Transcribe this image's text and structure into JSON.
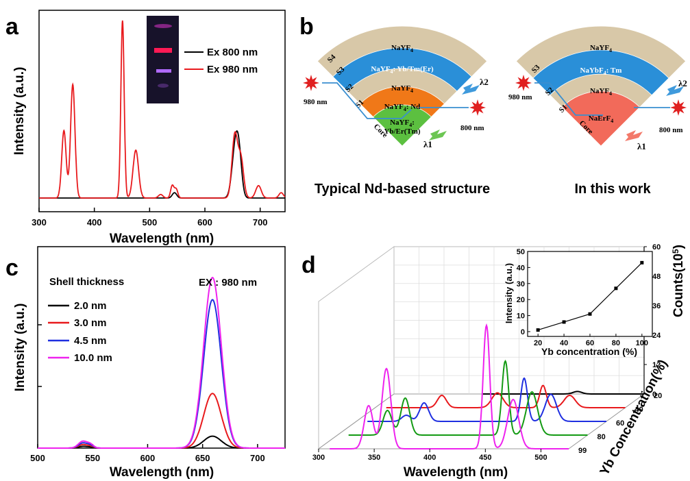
{
  "panels": {
    "a": "a",
    "b": "b",
    "c": "c",
    "d": "d"
  },
  "chart_data": [
    {
      "id": "a",
      "type": "line",
      "xlabel": "Wavelength (nm)",
      "ylabel": "Intensity (a.u.)",
      "xlim": [
        300,
        745
      ],
      "xticks": [
        300,
        400,
        500,
        600,
        700
      ],
      "ylim": [
        0,
        1
      ],
      "legend_position": "top-right",
      "inset_photo": true,
      "series": [
        {
          "name": "Ex 800 nm",
          "color": "#000000",
          "peaks": [
            [
              545,
              0.03,
              4
            ],
            [
              655,
              0.28,
              6
            ],
            [
              662,
              0.18,
              5
            ]
          ]
        },
        {
          "name": "Ex 980 nm",
          "color": "#e8191c",
          "peaks": [
            [
              345,
              0.38,
              4
            ],
            [
              361,
              0.64,
              4
            ],
            [
              451,
              1.0,
              3
            ],
            [
              475,
              0.27,
              5
            ],
            [
              541,
              0.07,
              3
            ],
            [
              548,
              0.05,
              3
            ],
            [
              520,
              0.02,
              4
            ],
            [
              654,
              0.35,
              5
            ],
            [
              665,
              0.22,
              5
            ],
            [
              697,
              0.07,
              5
            ],
            [
              738,
              0.03,
              4
            ]
          ]
        }
      ]
    },
    {
      "id": "c",
      "type": "line",
      "xlabel": "Wavelength (nm)",
      "ylabel": "Intensity (a.u.)",
      "xlim": [
        500,
        725
      ],
      "xticks": [
        500,
        550,
        600,
        650,
        700
      ],
      "ylim": [
        0,
        1
      ],
      "legend_title": "Shell thickness",
      "annotation": "EX : 980 nm",
      "series": [
        {
          "name": "2.0 nm",
          "color": "#000000",
          "peak": 0.07,
          "green": 0.01
        },
        {
          "name": "3.0 nm",
          "color": "#e8191c",
          "peak": 0.32,
          "green": 0.02
        },
        {
          "name": "4.5 nm",
          "color": "#1f2fe0",
          "peak": 0.87,
          "green": 0.03
        },
        {
          "name": "10.0 nm",
          "color": "#ee22ee",
          "peak": 1.0,
          "green": 0.04
        }
      ]
    },
    {
      "id": "d",
      "type": "line",
      "xlabel": "Wavelength (nm)",
      "zlabel": "Yb Concentration(%)",
      "xticks": [
        300,
        350,
        400,
        450,
        500
      ],
      "xlim": [
        300,
        525
      ],
      "zticks": [
        "20",
        "40",
        "60",
        "80",
        "99"
      ],
      "series": [
        {
          "name": "20",
          "color": "#000000"
        },
        {
          "name": "40",
          "color": "#e8191c"
        },
        {
          "name": "60",
          "color": "#1f2fe0"
        },
        {
          "name": "80",
          "color": "#139a13"
        },
        {
          "name": "99",
          "color": "#ee22ee"
        }
      ],
      "right_axis": {
        "label": "Counts(10",
        "label_sup": "5",
        "label_end": ")",
        "ticks": [
          0,
          12,
          24,
          36,
          48,
          60
        ]
      }
    },
    {
      "id": "d-inset",
      "type": "line",
      "xlabel": "Yb concentration (%)",
      "ylabel": "Intensity (a.u.)",
      "x": [
        20,
        40,
        60,
        80,
        100
      ],
      "y": [
        1,
        6,
        11,
        27,
        43
      ],
      "xticks": [
        20,
        40,
        60,
        80,
        100
      ],
      "yticks": [
        0,
        10,
        20,
        30,
        40,
        50
      ],
      "xlim": [
        12,
        108
      ],
      "ylim": [
        -3,
        50
      ]
    }
  ],
  "legend_a": [
    "Ex 800 nm",
    "Ex 980 nm"
  ],
  "legend_c": {
    "title": "Shell thickness",
    "annotation": "EX : 980 nm",
    "items": [
      "2.0 nm",
      "3.0 nm",
      "4.5 nm",
      "10.0 nm"
    ]
  },
  "diagram_b": {
    "left": {
      "caption": "Typical Nd-based structure",
      "layers": [
        "NaYF4",
        "NaYF4: Yb/Tm(Er)",
        "NaYF4",
        "NaYF4: Nd",
        "NaYF4: Yb/Er(Tm)"
      ],
      "layer_parts": {
        "l1": [
          "NaYF",
          "4"
        ],
        "l2a": [
          "NaYF",
          "4",
          ": Yb/Tm(Er)"
        ],
        "l3": [
          "NaYF",
          "4"
        ],
        "l4a": [
          "NaYF",
          "4",
          ": Nd"
        ],
        "l5a": [
          "NaYF",
          "4",
          ":"
        ],
        "l5b": "Yb/Er(Tm)"
      },
      "shell_labels": [
        "S4",
        "S3",
        "S2",
        "S1"
      ],
      "core": "Core",
      "exc_left": "980 nm",
      "exc_right": "800 nm",
      "lambda1": "λ",
      "lambda1_sub": "1",
      "lambda2": "λ",
      "lambda2_sub": "2"
    },
    "right": {
      "caption": "In this work",
      "layer_parts": {
        "l1": [
          "NaYF",
          "4"
        ],
        "l2": [
          "NaYbF",
          "4",
          ": Tm"
        ],
        "l3": [
          "NaYF",
          "4"
        ],
        "l4": [
          "NaErF",
          "4"
        ]
      },
      "shell_labels": [
        "S3",
        "S2",
        "S1"
      ],
      "core": "Core",
      "exc_left": "980 nm",
      "exc_right": "800 nm",
      "lambda1": "λ",
      "lambda1_sub": "1",
      "lambda2": "λ",
      "lambda2_sub": "2"
    }
  },
  "colors": {
    "outer_shell": "#d8c8a8",
    "blue_shell": "#2a8fd8",
    "orange_shell": "#f07818",
    "green_core": "#5cc040",
    "red_core": "#f26a5a",
    "star": "#e02020",
    "arrow": "#3a8fd0"
  }
}
